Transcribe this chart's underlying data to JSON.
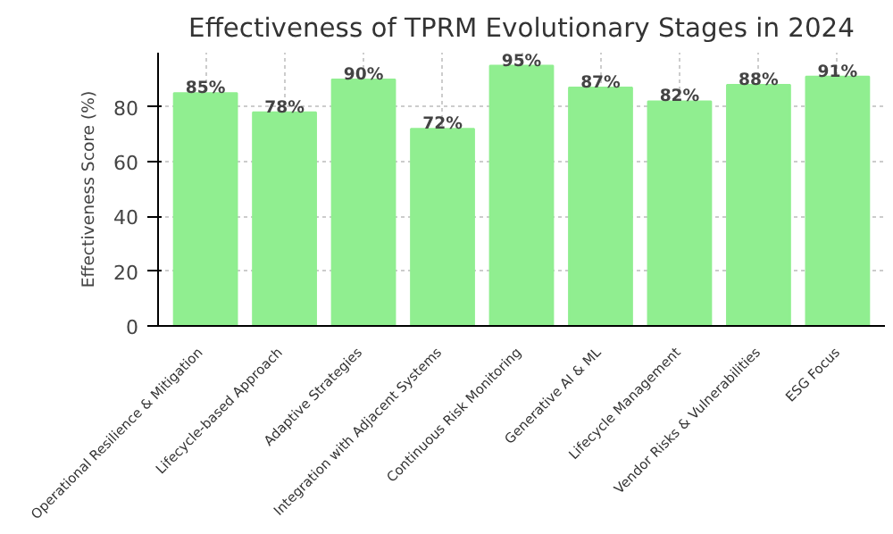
{
  "chart_data": {
    "type": "bar",
    "title": "Effectiveness of TPRM Evolutionary Stages in 2024",
    "ylabel": "Effectiveness Score (%)",
    "categories": [
      "Operational Resilience & Mitigation",
      "Lifecycle-based Approach",
      "Adaptive Strategies",
      "Integration with Adjacent Systems",
      "Continuous Risk Monitoring",
      "Generative AI & ML",
      "Lifecycle Management",
      "Vendor Risks & Vulnerabilities",
      "ESG Focus"
    ],
    "values": [
      85,
      78,
      90,
      72,
      95,
      87,
      82,
      88,
      91
    ],
    "value_labels": [
      "85%",
      "78%",
      "90%",
      "72%",
      "95%",
      "87%",
      "82%",
      "88%",
      "91%"
    ],
    "color": "#90ee90",
    "ylim": [
      0,
      99.75
    ],
    "yticks": [
      0,
      20,
      40,
      60,
      80
    ],
    "grid": true
  }
}
